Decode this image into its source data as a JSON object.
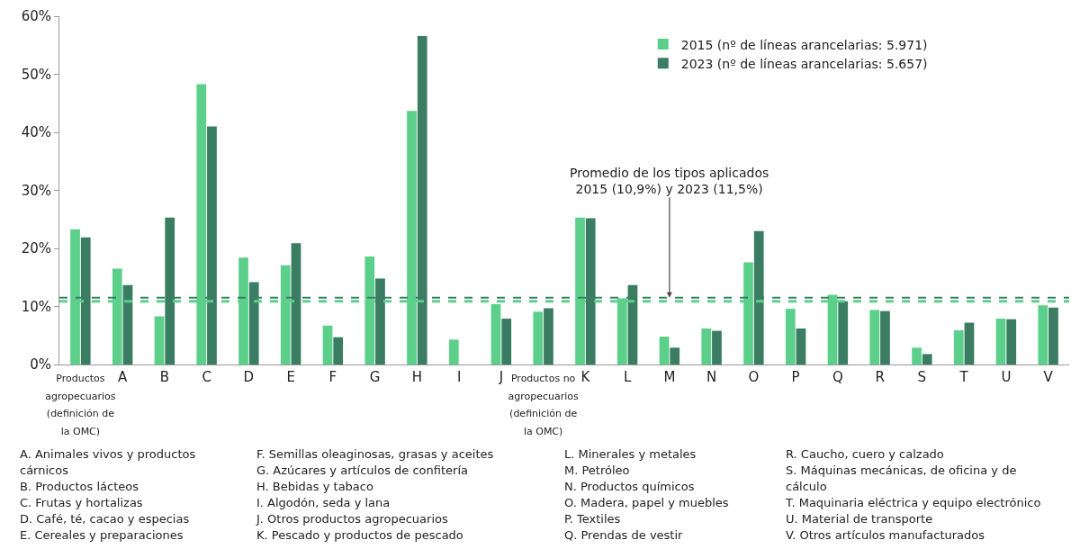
{
  "chart_data": {
    "type": "bar",
    "categories": [
      "Productos agropecuarios (definición de la OMC)",
      "A",
      "B",
      "C",
      "D",
      "E",
      "F",
      "G",
      "H",
      "I",
      "J",
      "Productos no agropecuarios (definición de la OMC)",
      "K",
      "L",
      "M",
      "N",
      "O",
      "P",
      "Q",
      "R",
      "S",
      "T",
      "U",
      "V"
    ],
    "series": [
      {
        "name": "2015 (nº de líneas arancelarias: 5.971)",
        "color": "#5cd08b",
        "values": [
          23.3,
          16.5,
          8.3,
          48.3,
          18.4,
          17.1,
          6.7,
          18.6,
          43.7,
          4.3,
          10.4,
          9.1,
          25.3,
          11.4,
          4.8,
          6.2,
          17.6,
          9.6,
          12.0,
          9.4,
          2.9,
          5.9,
          7.9,
          10.2
        ]
      },
      {
        "name": "2023 (nº de líneas arancelarias: 5.657)",
        "color": "#3a7d63",
        "values": [
          21.9,
          13.7,
          25.3,
          41.0,
          14.2,
          20.9,
          4.7,
          14.8,
          56.6,
          null,
          7.9,
          9.7,
          25.2,
          13.7,
          2.9,
          5.8,
          23.0,
          6.2,
          10.9,
          9.2,
          1.8,
          7.2,
          7.8,
          9.8
        ]
      }
    ],
    "ylim": [
      0,
      60
    ],
    "yticks": [
      {
        "value": 0,
        "label": "0%"
      },
      {
        "value": 10,
        "label": "10%"
      },
      {
        "value": 20,
        "label": "20%"
      },
      {
        "value": 30,
        "label": "30%"
      },
      {
        "value": 40,
        "label": "40%"
      },
      {
        "value": 50,
        "label": "50%"
      },
      {
        "value": 60,
        "label": "60%"
      }
    ],
    "grid": false,
    "legend": "top right",
    "ref_lines": [
      {
        "axis": "y",
        "value": 10.9,
        "color": "#5cd08b",
        "line_style": "dashed"
      },
      {
        "axis": "y",
        "value": 11.5,
        "color": "#3a7d63",
        "line_style": "dashed"
      }
    ],
    "annotations": [
      {
        "text": "Promedio de los tipos aplicados\n2015 (10,9%) y 2023 (11,5%)",
        "x": "M",
        "y": 11.5
      },
      "A. Animales vivos y productos cárnicos",
      "B. Productos lácteos",
      "C. Frutas y hortalizas",
      "D. Café, té, cacao y especias",
      "E. Cereales y preparaciones",
      "F. Semillas oleaginosas, grasas y aceites",
      "G. Azúcares y artículos de confitería",
      "H. Bebidas y tabaco",
      "I. Algodón, seda y lana",
      "J. Otros productos agropecuarios",
      "K. Pescado y productos de pescado",
      "L. Minerales y metales",
      "M. Petróleo",
      "N. Productos químicos",
      "O. Madera, papel y muebles",
      "P. Textiles",
      "Q. Prendas de vestir",
      "R. Caucho, cuero y calzado",
      "S. Máquinas mecánicas, de oficina y de cálculo",
      "T. Maquinaria eléctrica y equipo electrónico",
      "U. Material de transporte",
      "V. Otros artículos manufacturados"
    ]
  }
}
